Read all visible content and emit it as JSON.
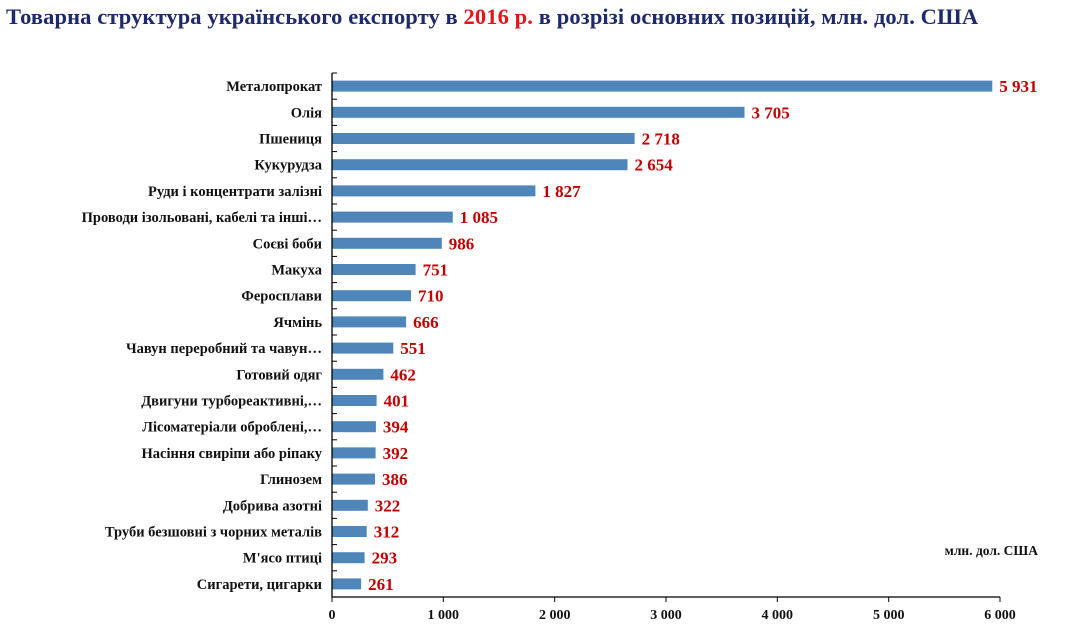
{
  "chart_data": {
    "type": "bar",
    "orientation": "horizontal",
    "title_parts": {
      "before": "Товарна структура українського експорту в",
      "highlight": "2016 р.",
      "after": "в розрізі основних позицій, млн. дол. США"
    },
    "unit_label": "млн. дол. США",
    "categories": [
      "Металопрокат",
      "Олія",
      "Пшениця",
      "Кукурудза",
      "Руди і концентрати залізні",
      "Проводи ізольовані, кабелі та інші…",
      "Соєві боби",
      "Макуха",
      "Феросплави",
      "Ячмінь",
      "Чавун переробний та чавун…",
      "Готовий одяг",
      "Двигуни турбореактивні,…",
      "Лісоматеріали оброблені,…",
      "Насіння свиріпи або ріпаку",
      "Глинозем",
      "Добрива азотні",
      "Труби безшовні з чорних металів",
      "М'ясо птиці",
      "Сигарети, цигарки"
    ],
    "values": [
      5931,
      3705,
      2718,
      2654,
      1827,
      1085,
      986,
      751,
      710,
      666,
      551,
      462,
      401,
      394,
      392,
      386,
      322,
      312,
      293,
      261
    ],
    "value_labels": [
      "5 931",
      "3 705",
      "2 718",
      "2 654",
      "1 827",
      "1 085",
      "986",
      "751",
      "710",
      "666",
      "551",
      "462",
      "401",
      "394",
      "392",
      "386",
      "322",
      "312",
      "293",
      "261"
    ],
    "xlim": [
      0,
      6000
    ],
    "x_ticks": [
      0,
      1000,
      2000,
      3000,
      4000,
      5000,
      6000
    ],
    "x_tick_labels": [
      "0",
      "1 000",
      "2 000",
      "3 000",
      "4 000",
      "5 000",
      "6 000"
    ],
    "grid": false,
    "legend": "none",
    "colors": {
      "bar": "#4F86BA",
      "value_label": "#C00000",
      "title": "#1F2A6B",
      "title_highlight": "#E8141A",
      "axis": "#000000"
    }
  }
}
